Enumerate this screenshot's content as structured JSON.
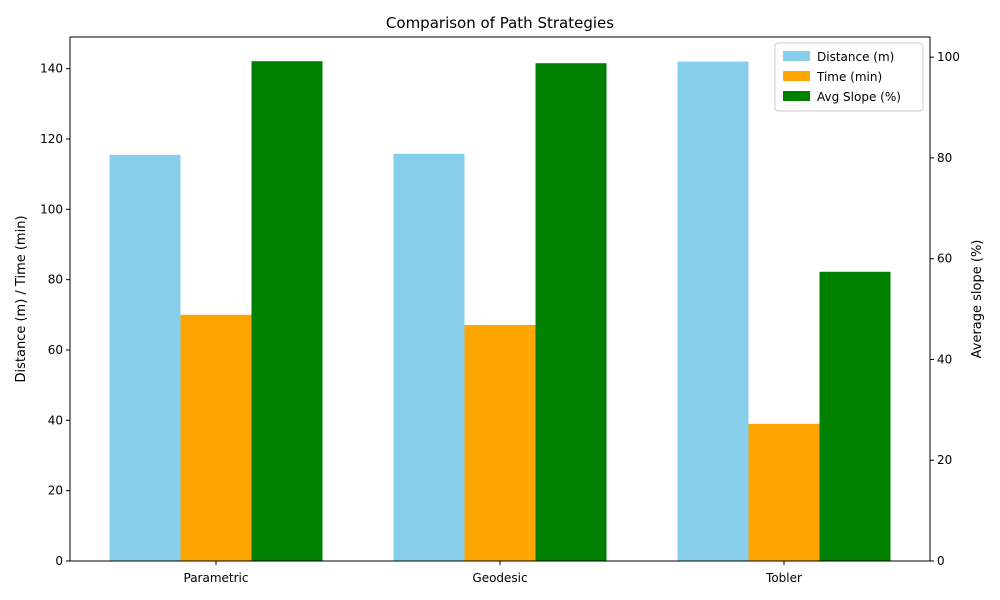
{
  "chart_data": {
    "type": "bar",
    "title": "Comparison of Path Strategies",
    "categories": [
      "Parametric",
      "Geodesic",
      "Tobler"
    ],
    "ylabel": "Distance (m) / Time (min)",
    "ylabel_right": "Average slope (%)",
    "ylim": [
      0,
      149
    ],
    "ylim_right": [
      0,
      104
    ],
    "yticks": [
      0,
      20,
      40,
      60,
      80,
      100,
      120,
      140
    ],
    "yticks_right": [
      0,
      20,
      40,
      60,
      80,
      100
    ],
    "legend_position": "top-right",
    "series": [
      {
        "name": "Distance (m)",
        "axis": "left",
        "color": "#87ceeb",
        "values": [
          115.5,
          115.8,
          142.0
        ]
      },
      {
        "name": "Time (min)",
        "axis": "left",
        "color": "#ffa500",
        "values": [
          70.0,
          67.1,
          39.0
        ]
      },
      {
        "name": "Avg Slope (%)",
        "axis": "right",
        "color": "#008000",
        "values": [
          99.2,
          98.8,
          57.4
        ]
      }
    ]
  }
}
